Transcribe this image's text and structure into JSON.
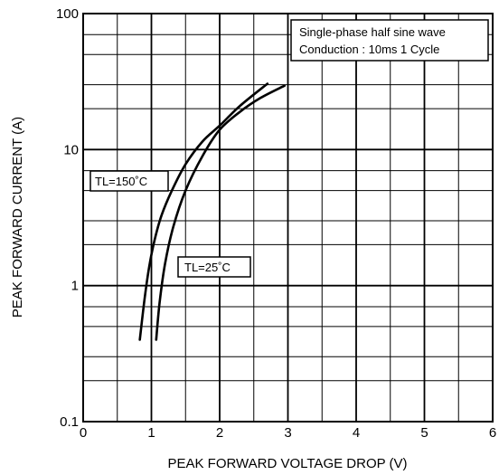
{
  "chart_data": {
    "type": "line",
    "xlabel": "PEAK FORWARD VOLTAGE DROP (V)",
    "ylabel": "PEAK FORWARD CURRENT (A)",
    "x_scale": "linear",
    "y_scale": "log",
    "xlim": [
      0,
      6
    ],
    "ylim": [
      0.1,
      100
    ],
    "x_ticks": [
      "0",
      "1",
      "2",
      "3",
      "4",
      "5",
      "6"
    ],
    "y_ticks": [
      "0.1",
      "1",
      "10",
      "100"
    ],
    "grid": true,
    "legend_box": {
      "line1": "Single-phase half sine wave",
      "line2": "Conduction : 10ms 1 Cycle"
    },
    "series": [
      {
        "name": "TL=150˚C",
        "x": [
          0.83,
          0.9,
          0.97,
          1.05,
          1.15,
          1.3,
          1.5,
          1.75,
          2.0,
          2.3,
          2.7
        ],
        "y": [
          0.4,
          0.8,
          1.4,
          2.2,
          3.3,
          5.0,
          7.8,
          11.5,
          15.0,
          21.0,
          30.5
        ]
      },
      {
        "name": "TL=25˚C",
        "x": [
          1.07,
          1.12,
          1.2,
          1.32,
          1.5,
          1.75,
          2.0,
          2.3,
          2.6,
          2.95
        ],
        "y": [
          0.4,
          0.75,
          1.45,
          2.7,
          5.0,
          9.0,
          14.0,
          19.0,
          24.0,
          29.5
        ]
      }
    ],
    "annotations": [
      {
        "text": "TL=150˚C",
        "series": 0
      },
      {
        "text": "TL=25˚C",
        "series": 1
      }
    ]
  }
}
